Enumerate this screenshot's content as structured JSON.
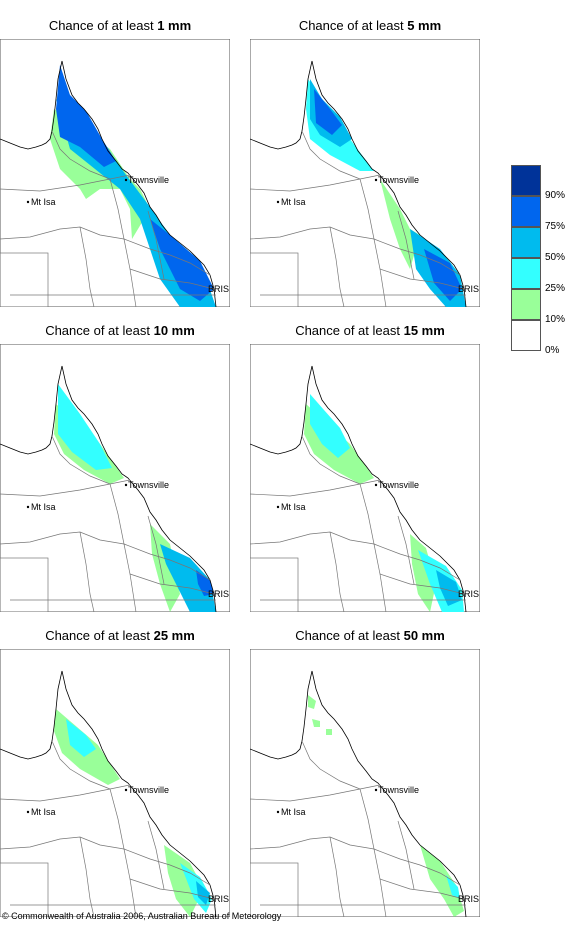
{
  "panels": [
    {
      "prefix": "Chance of at least ",
      "amount": "1 mm"
    },
    {
      "prefix": "Chance of at least ",
      "amount": "5 mm"
    },
    {
      "prefix": "Chance of at least ",
      "amount": "10 mm"
    },
    {
      "prefix": "Chance of at least ",
      "amount": "15 mm"
    },
    {
      "prefix": "Chance of at least ",
      "amount": "25 mm"
    },
    {
      "prefix": "Chance of at least ",
      "amount": "50 mm"
    }
  ],
  "places": {
    "townsville": "Townsville",
    "mt_isa": "Mt Isa",
    "bris": "BRIS"
  },
  "legend": {
    "labels": [
      "90%",
      "75%",
      "50%",
      "25%",
      "10%",
      "0%"
    ],
    "colors": [
      "#003399",
      "#0066ee",
      "#00bbee",
      "#33ffff",
      "#99ff99",
      "#ffffff"
    ]
  },
  "footer": "© Commonwealth of Australia 2006, Australian Bureau of Meteorology"
}
